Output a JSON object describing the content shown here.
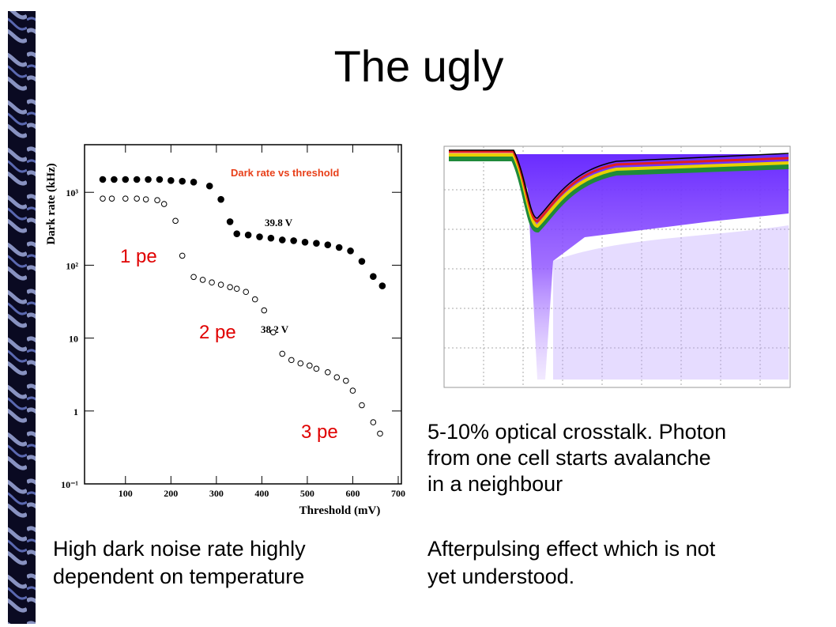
{
  "title": "The ugly",
  "left_text": [
    "High dark noise rate highly",
    "dependent on temperature"
  ],
  "right_text_top": [
    "5-10% optical crosstalk. Photon",
    "from one cell starts avalanche",
    "in a neighbour"
  ],
  "right_text_bottom": [
    "Afterpulsing effect which is not",
    "yet understood."
  ],
  "chart_data": {
    "type": "scatter",
    "title": "Dark rate vs threshold",
    "x_label": "Threshold  (mV)",
    "y_label": "Dark rate  (kHz)",
    "log_y": true,
    "xlim": [
      10,
      707
    ],
    "ylim": [
      0.1,
      4500
    ],
    "xticks": [
      100,
      200,
      300,
      400,
      500,
      600,
      700
    ],
    "yticks": [
      {
        "value": 0.1,
        "label": "10⁻¹"
      },
      1,
      10,
      {
        "value": 100,
        "label": "10²"
      },
      {
        "value": 1000,
        "label": "10³"
      }
    ],
    "annotations": [
      "1 pe",
      "2 pe",
      "3 pe"
    ],
    "series": [
      {
        "name": "39.8 V",
        "marker": "filled",
        "color": "#000000",
        "x": [
          50,
          75,
          100,
          125,
          150,
          175,
          200,
          225,
          250,
          285,
          310,
          330,
          345,
          370,
          395,
          420,
          445,
          470,
          495,
          520,
          545,
          570,
          595,
          620,
          645,
          665
        ],
        "values": [
          1500,
          1500,
          1500,
          1500,
          1500,
          1500,
          1450,
          1420,
          1380,
          1220,
          800,
          395,
          270,
          260,
          245,
          235,
          222,
          217,
          207,
          200,
          190,
          175,
          157,
          113,
          70,
          52
        ]
      },
      {
        "name": "38.2 V",
        "marker": "open",
        "color": "#000000",
        "x": [
          50,
          70,
          100,
          125,
          145,
          170,
          185,
          210,
          225,
          250,
          270,
          290,
          310,
          330,
          345,
          365,
          385,
          405,
          425,
          445,
          465,
          485,
          505,
          520,
          545,
          565,
          585,
          600,
          620,
          645,
          660
        ],
        "values": [
          820,
          820,
          820,
          820,
          800,
          780,
          690,
          406,
          135,
          69,
          63,
          58,
          54,
          50,
          47.5,
          43,
          34,
          24,
          12,
          6.1,
          5.0,
          4.5,
          4.2,
          3.8,
          3.4,
          2.9,
          2.6,
          1.9,
          1.2,
          0.7,
          0.49
        ]
      }
    ]
  }
}
